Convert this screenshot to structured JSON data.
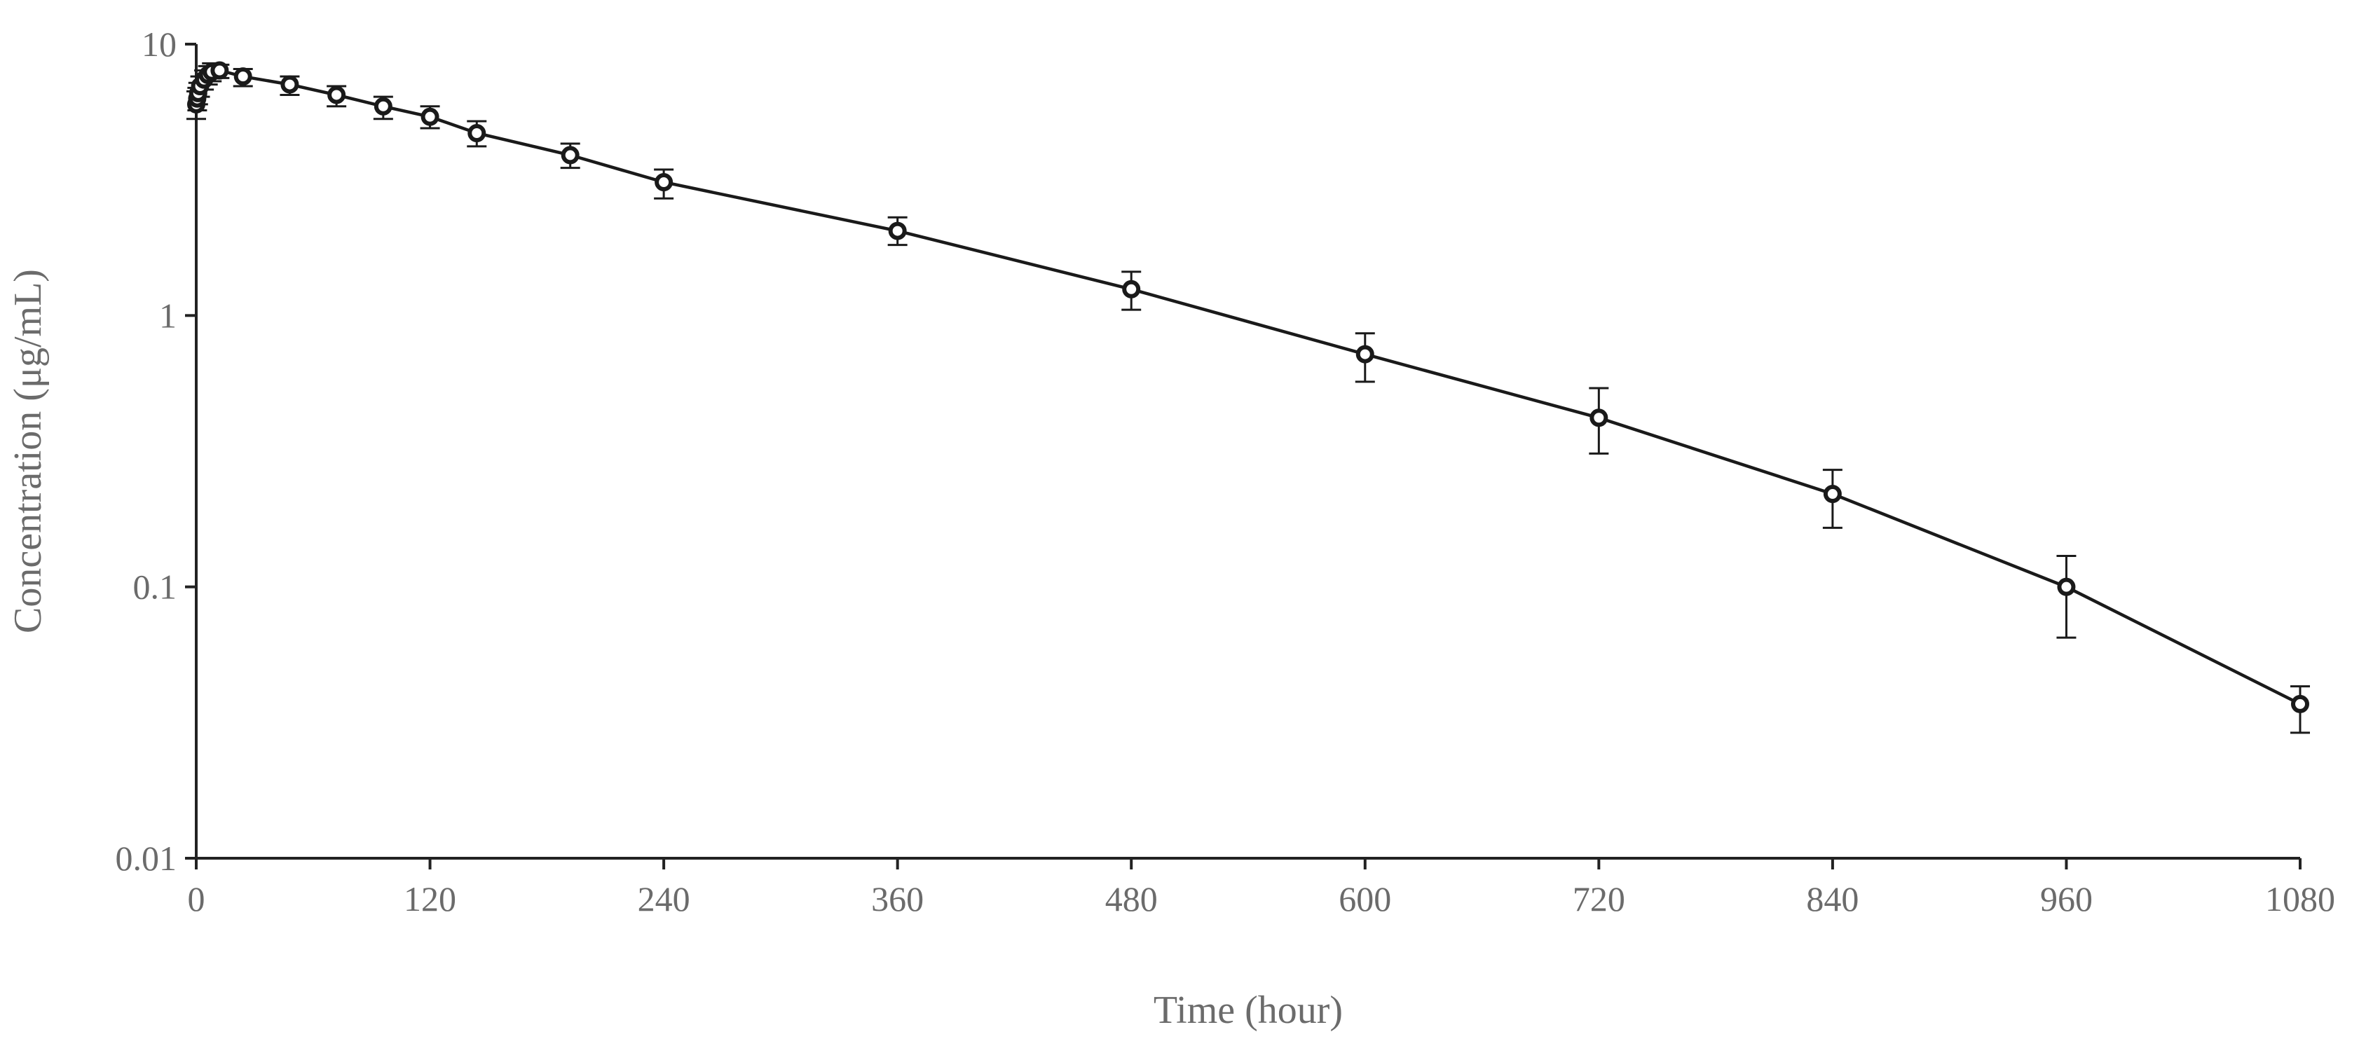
{
  "chart_data": {
    "type": "line",
    "title": "",
    "xlabel": "Time (hour)",
    "ylabel": "Concentration  (μg/mL)",
    "xlim": [
      0,
      1080
    ],
    "ylim": [
      0.01,
      10
    ],
    "yscale": "log",
    "grid": false,
    "legend": "none",
    "x_ticks": [
      "0",
      "120",
      "240",
      "360",
      "480",
      "600",
      "720",
      "840",
      "960",
      "1080"
    ],
    "y_ticks": [
      "0.01",
      "0.1",
      "1",
      "10"
    ],
    "series": [
      {
        "x": [
          0,
          0.5,
          1,
          2,
          4,
          6,
          8,
          12,
          24,
          48,
          72,
          96,
          120,
          144,
          192,
          240,
          360,
          480,
          600,
          720,
          840,
          960,
          1080
        ],
        "y": [
          6.0,
          6.3,
          6.6,
          7.0,
          7.4,
          7.7,
          7.9,
          8.0,
          7.6,
          7.1,
          6.5,
          5.9,
          5.4,
          4.7,
          3.9,
          3.1,
          2.05,
          1.25,
          0.72,
          0.42,
          0.22,
          0.1,
          0.037
        ],
        "err_low": [
          5.3,
          5.7,
          6.0,
          6.4,
          6.8,
          7.1,
          7.3,
          7.5,
          7.0,
          6.5,
          5.9,
          5.3,
          4.9,
          4.2,
          3.5,
          2.7,
          1.82,
          1.05,
          0.57,
          0.31,
          0.165,
          0.065,
          0.029
        ],
        "err_high": [
          6.7,
          6.9,
          7.2,
          7.6,
          8.0,
          8.3,
          8.5,
          8.4,
          8.1,
          7.6,
          7.0,
          6.4,
          5.9,
          5.2,
          4.3,
          3.45,
          2.3,
          1.45,
          0.86,
          0.54,
          0.27,
          0.13,
          0.043
        ]
      }
    ],
    "colors": {
      "line": "#1a1a1a",
      "marker_fill": "#ffffff",
      "text": "#6b6b6b"
    }
  }
}
